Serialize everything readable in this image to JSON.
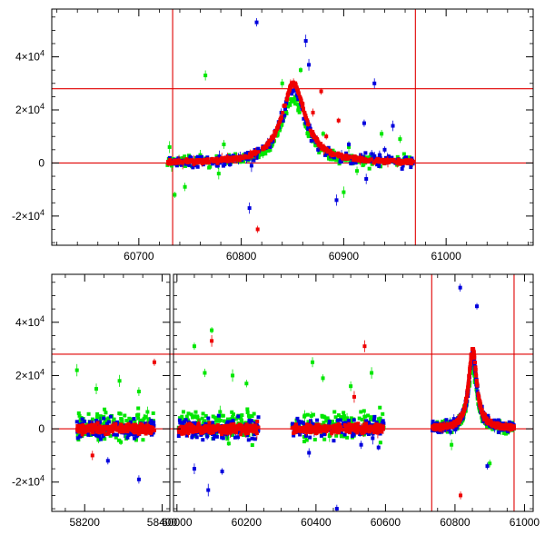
{
  "chart_data": [
    {
      "type": "scatter",
      "panel": "top",
      "title": "",
      "xlabel": "",
      "ylabel": "",
      "xlim": [
        60615,
        61085
      ],
      "ylim": [
        -31000,
        58000
      ],
      "x_ticks": [
        60700,
        60800,
        60900,
        61000
      ],
      "x_tick_labels": [
        "60700",
        "60800",
        "60900",
        "61000"
      ],
      "y_ticks": [
        -20000,
        0,
        20000,
        40000
      ],
      "y_tick_mantissa": [
        "-2×10",
        "0",
        "2×10",
        "4×10"
      ],
      "y_tick_exponent": [
        "4",
        "",
        "4",
        "4"
      ],
      "reference_lines": {
        "vertical_x": [
          60733,
          60970
        ],
        "horizontal_y": [
          0,
          28000
        ]
      },
      "series": [
        {
          "name": "green",
          "color": "#00e600",
          "outliers": [
            {
              "x": 60730,
              "y": 6000
            },
            {
              "x": 60735,
              "y": -12000
            },
            {
              "x": 60745,
              "y": -9000
            },
            {
              "x": 60760,
              "y": 3000
            },
            {
              "x": 60765,
              "y": 33000
            },
            {
              "x": 60778,
              "y": -4000
            },
            {
              "x": 60783,
              "y": 7000
            },
            {
              "x": 60840,
              "y": 30000
            },
            {
              "x": 60858,
              "y": 35000
            },
            {
              "x": 60880,
              "y": 11000
            },
            {
              "x": 60900,
              "y": -11000
            },
            {
              "x": 60905,
              "y": 6000
            },
            {
              "x": 60937,
              "y": 11000
            },
            {
              "x": 60955,
              "y": 9000
            },
            {
              "x": 60913,
              "y": -3000
            }
          ]
        },
        {
          "name": "blue",
          "color": "#0000dd",
          "outliers": [
            {
              "x": 60815,
              "y": 53000
            },
            {
              "x": 60808,
              "y": -17000
            },
            {
              "x": 60830,
              "y": 8000
            },
            {
              "x": 60863,
              "y": 46000
            },
            {
              "x": 60866,
              "y": 37000
            },
            {
              "x": 60893,
              "y": -14000
            },
            {
              "x": 60905,
              "y": 7000
            },
            {
              "x": 60920,
              "y": 15000
            },
            {
              "x": 60930,
              "y": 30000
            },
            {
              "x": 60935,
              "y": 3000
            },
            {
              "x": 60922,
              "y": -6000
            },
            {
              "x": 60948,
              "y": 14000
            },
            {
              "x": 60940,
              "y": 5000
            },
            {
              "x": 60875,
              "y": 5000
            },
            {
              "x": 60810,
              "y": -1000
            }
          ]
        },
        {
          "name": "red",
          "color": "#ee0000",
          "outliers": [
            {
              "x": 60816,
              "y": -25000
            },
            {
              "x": 60878,
              "y": 27000
            },
            {
              "x": 60883,
              "y": 10000
            },
            {
              "x": 60895,
              "y": 16000
            },
            {
              "x": 60870,
              "y": 19000
            }
          ]
        }
      ]
    },
    {
      "type": "scatter",
      "panel": "bottom",
      "title": "",
      "xlabel": "",
      "ylabel": "",
      "x_segments": [
        [
          58115,
          58420
        ],
        [
          59990,
          61025
        ]
      ],
      "ylim": [
        -31000,
        58000
      ],
      "x_ticks": [
        58200,
        58400,
        60000,
        60200,
        60400,
        60600,
        60800,
        61000
      ],
      "x_tick_labels": [
        "58200",
        "58400",
        "60000",
        "60200",
        "60400",
        "60600",
        "60800",
        "61000"
      ],
      "y_ticks": [
        -20000,
        0,
        20000,
        40000
      ],
      "y_tick_mantissa": [
        "-2×10",
        "0",
        "2×10",
        "4×10"
      ],
      "y_tick_exponent": [
        "4",
        "",
        "4",
        "4"
      ],
      "reference_lines": {
        "vertical_x": [
          60733,
          60970
        ],
        "horizontal_y": [
          0,
          28000
        ]
      },
      "series": [
        {
          "name": "green",
          "color": "#00e600",
          "outliers": [
            {
              "x": 58180,
              "y": 22000
            },
            {
              "x": 58230,
              "y": 15000
            },
            {
              "x": 58290,
              "y": 18000
            },
            {
              "x": 58340,
              "y": 14000
            },
            {
              "x": 60050,
              "y": 31000
            },
            {
              "x": 60080,
              "y": 21000
            },
            {
              "x": 60100,
              "y": 37000
            },
            {
              "x": 60160,
              "y": 20000
            },
            {
              "x": 60200,
              "y": 17000
            },
            {
              "x": 60390,
              "y": 25000
            },
            {
              "x": 60420,
              "y": 19000
            },
            {
              "x": 60500,
              "y": 16000
            },
            {
              "x": 60560,
              "y": 21000
            },
            {
              "x": 60790,
              "y": -6000
            },
            {
              "x": 60900,
              "y": -13000
            }
          ]
        },
        {
          "name": "blue",
          "color": "#0000dd",
          "outliers": [
            {
              "x": 58260,
              "y": -12000
            },
            {
              "x": 58340,
              "y": -19000
            },
            {
              "x": 60050,
              "y": -15000
            },
            {
              "x": 60090,
              "y": -23000
            },
            {
              "x": 60130,
              "y": -16000
            },
            {
              "x": 60380,
              "y": -9000
            },
            {
              "x": 60460,
              "y": -30000
            },
            {
              "x": 60530,
              "y": -6000
            },
            {
              "x": 60815,
              "y": 53000
            },
            {
              "x": 60863,
              "y": 46000
            },
            {
              "x": 60893,
              "y": -14000
            },
            {
              "x": 60580,
              "y": -7000
            }
          ]
        },
        {
          "name": "red",
          "color": "#ee0000",
          "outliers": [
            {
              "x": 58220,
              "y": -10000
            },
            {
              "x": 58380,
              "y": 25000
            },
            {
              "x": 60100,
              "y": 33000
            },
            {
              "x": 60510,
              "y": 12000
            },
            {
              "x": 60540,
              "y": 31000
            },
            {
              "x": 60816,
              "y": -25000
            }
          ]
        }
      ]
    }
  ],
  "colors": {
    "green": "#00e600",
    "blue": "#0000dd",
    "red": "#ee0000",
    "axis": "#000000",
    "ref_line": "#e00000"
  }
}
